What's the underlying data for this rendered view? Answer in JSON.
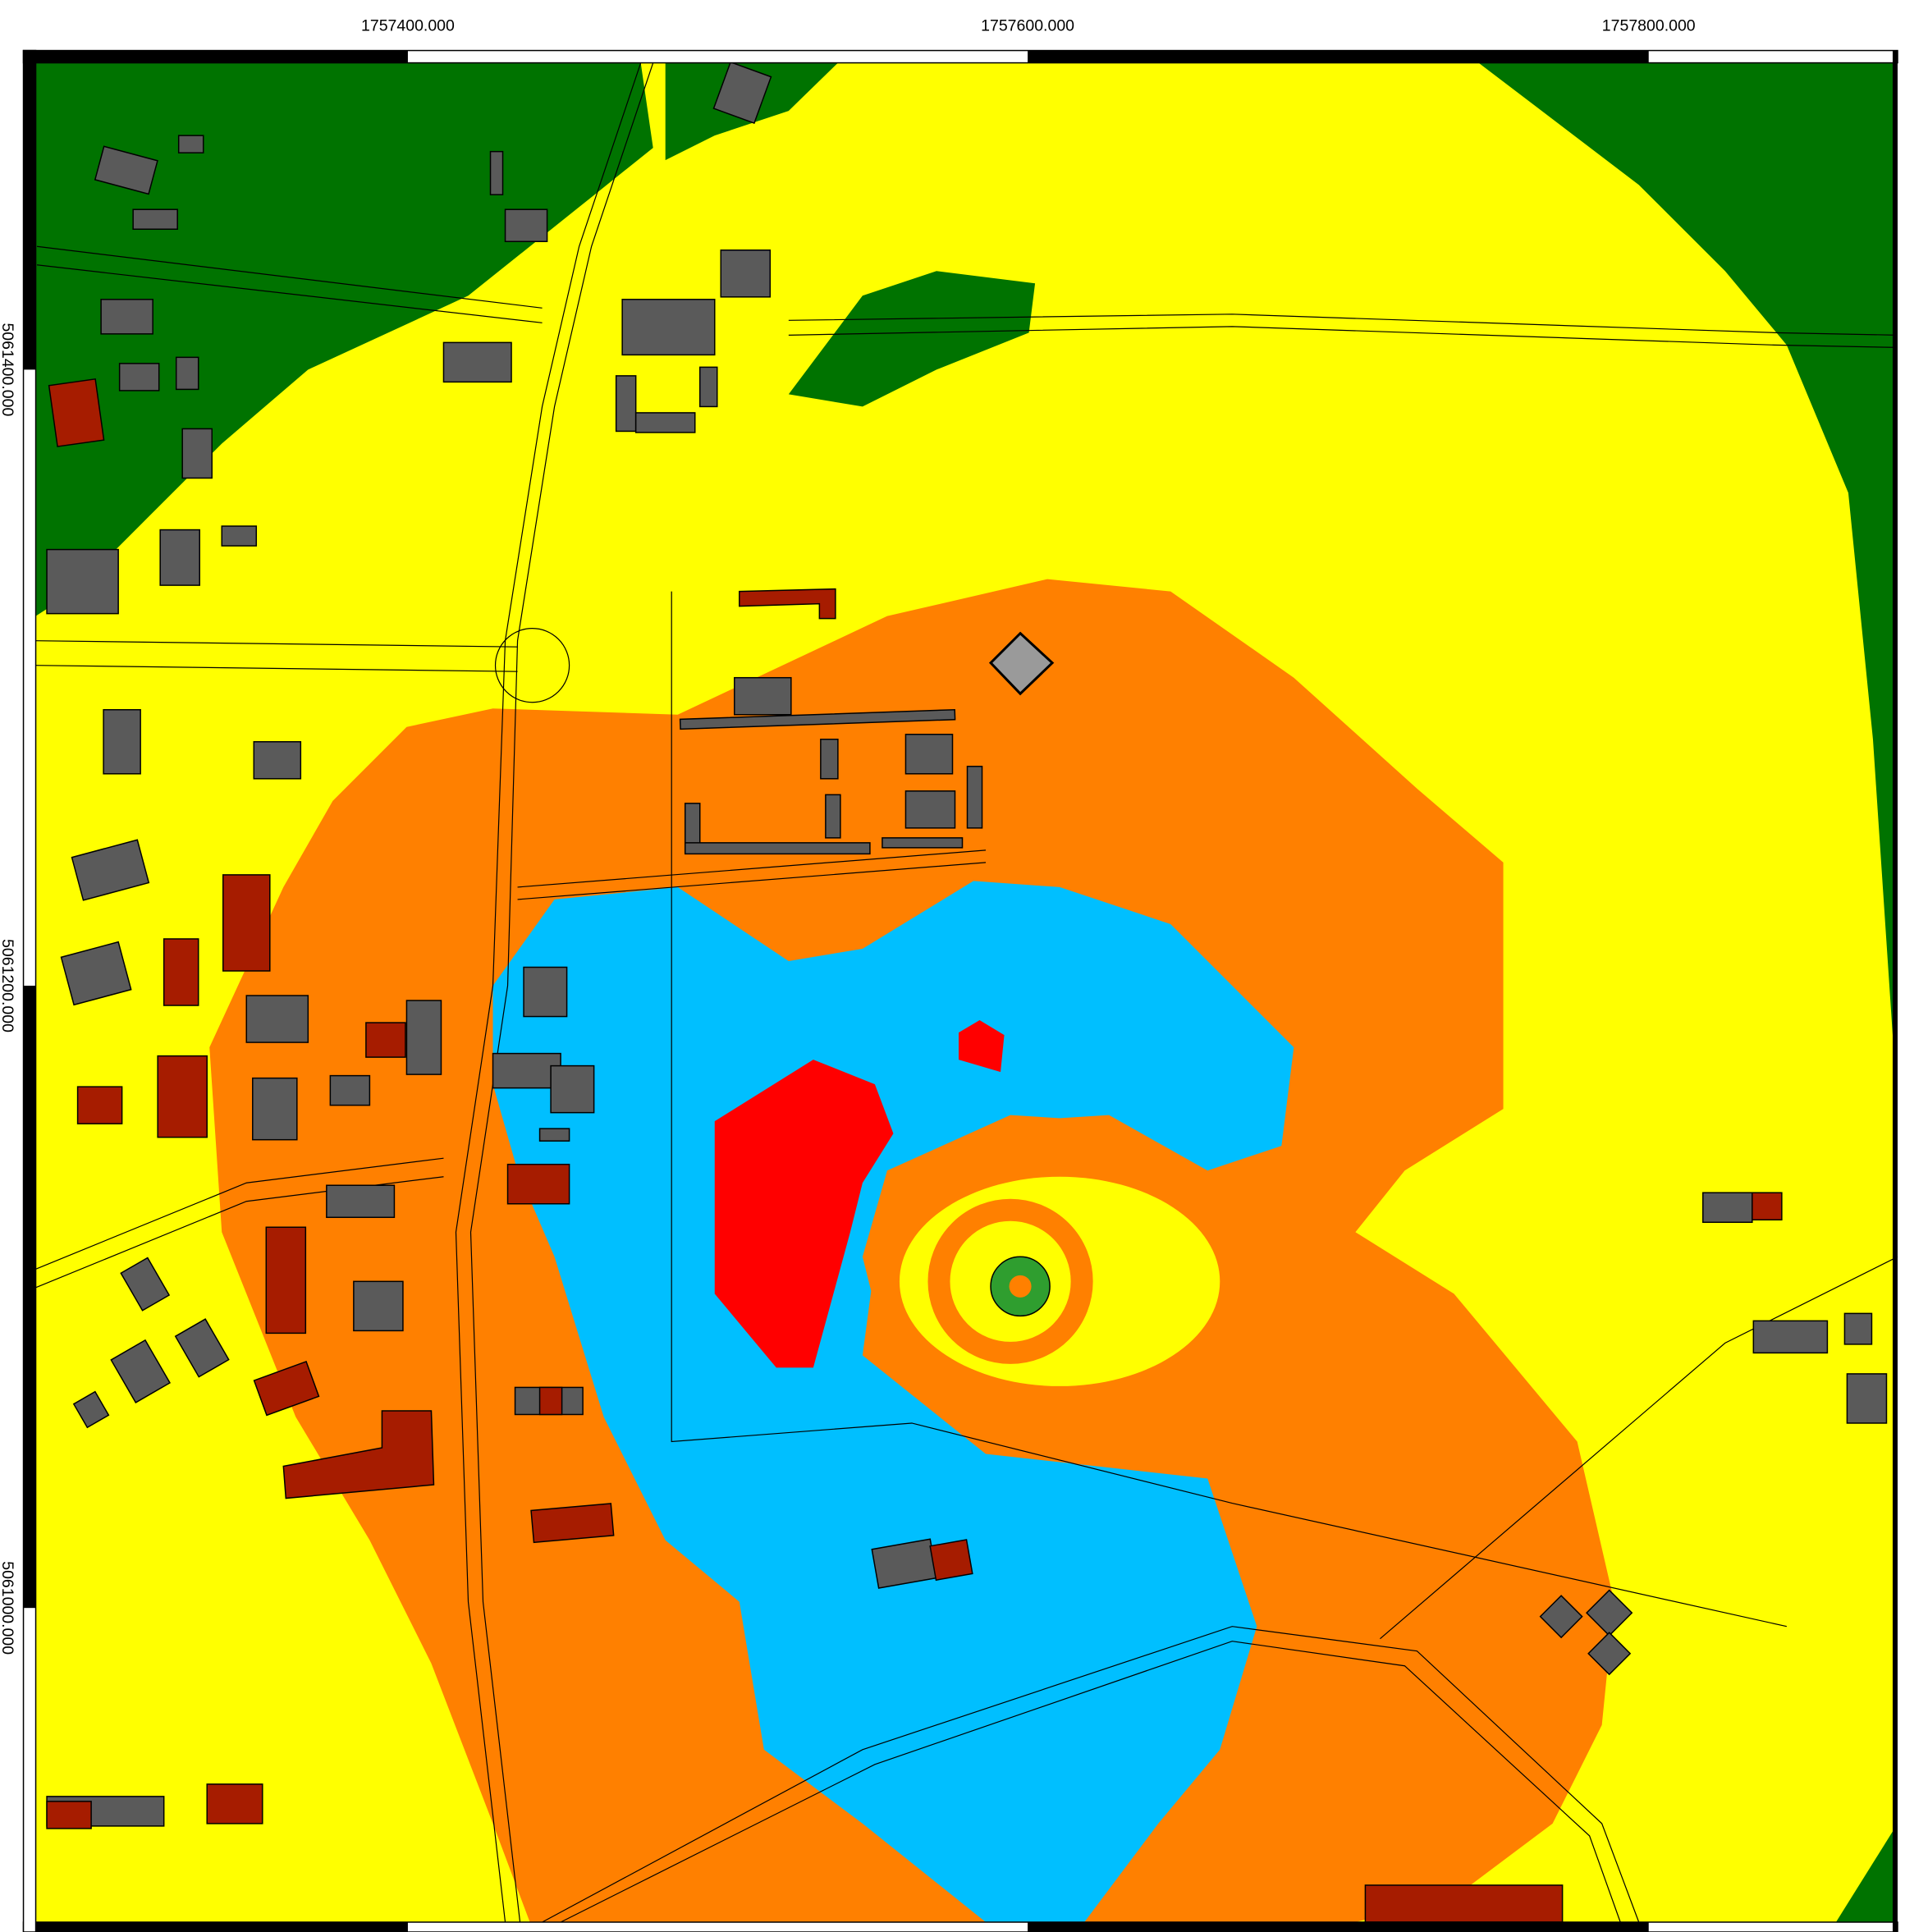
{
  "map": {
    "x_labels": [
      "1757400.000",
      "1757600.000",
      "1757800.000"
    ],
    "y_labels": [
      "5061400.000",
      "5061200.000",
      "5061000.000"
    ]
  }
}
